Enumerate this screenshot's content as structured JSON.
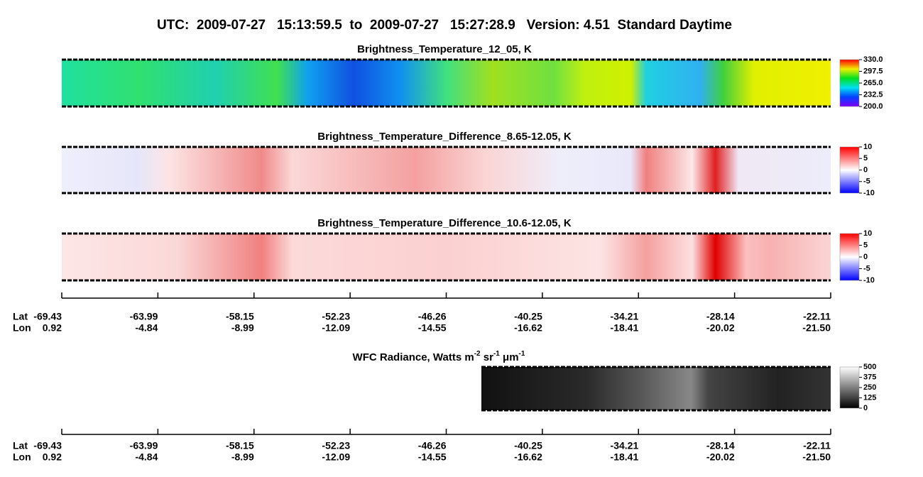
{
  "title": "UTC:  2009-07-27   15:13:59.5  to  2009-07-27   15:27:28.9   Version: 4.51  Standard Daytime",
  "panels": [
    {
      "title": "Brightness_Temperature_12_05, K",
      "clim": [
        200,
        330
      ],
      "cticks": [
        {
          "value": 330,
          "label": "330.0"
        },
        {
          "value": 297.5,
          "label": "297.5"
        },
        {
          "value": 265,
          "label": "265.0"
        },
        {
          "value": 232.5,
          "label": "232.5"
        },
        {
          "value": 200,
          "label": "200.0"
        }
      ]
    },
    {
      "title": "Brightness_Temperature_Difference_8.65-12.05, K",
      "clim": [
        -10,
        10
      ],
      "cticks": [
        10,
        5,
        0,
        -5,
        -10
      ]
    },
    {
      "title": "Brightness_Temperature_Difference_10.6-12.05, K",
      "clim": [
        -10,
        10
      ],
      "cticks": [
        10,
        5,
        0,
        -5,
        -10
      ]
    }
  ],
  "wfc": {
    "title_parts": [
      "WFC Radiance, Watts m",
      "-2",
      " sr",
      "-1",
      " μm",
      "-1"
    ],
    "clim": [
      0,
      500
    ],
    "cticks": [
      500,
      375,
      250,
      125,
      0
    ]
  },
  "axis_labels": {
    "lat": "Lat",
    "lon": "Lon"
  },
  "lat": [
    -69.43,
    -63.99,
    -58.15,
    -52.23,
    -46.26,
    -40.25,
    -34.21,
    -28.14,
    -22.11
  ],
  "lon": [
    0.92,
    -4.84,
    -8.99,
    -12.09,
    -14.55,
    -16.62,
    -18.41,
    -20.02,
    {
      "value": -21.5,
      "label": "-21.50"
    }
  ]
}
